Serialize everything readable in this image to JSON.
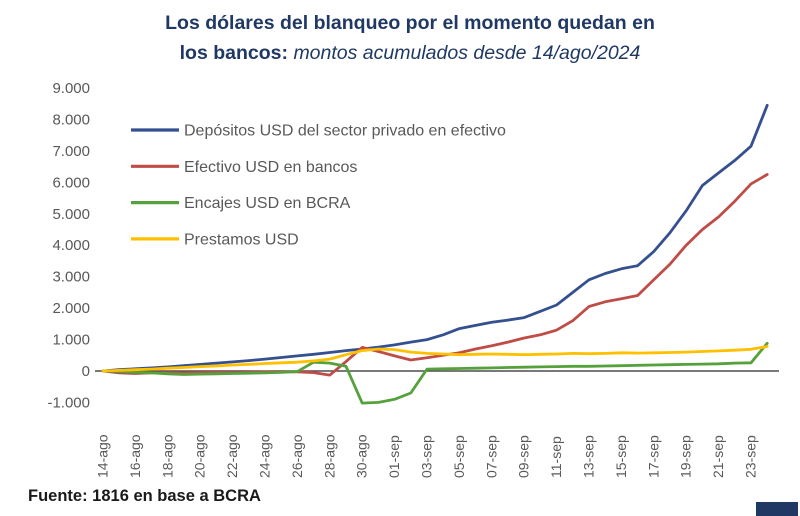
{
  "title": {
    "line1": "Los dólares del blanqueo por el momento quedan en",
    "line2_bold": "los bancos",
    "line2_sep": ": ",
    "line2_italic": "montos acumulados desde 14/ago/2024"
  },
  "footer": {
    "source": "Fuente: 1816 en base a BCRA"
  },
  "colors": {
    "title": "#1F3864",
    "axis_text": "#595959",
    "zero_line": "#4D4D4D",
    "corner_box": "#203864"
  },
  "chart_data": {
    "type": "line",
    "title": "Los dólares del blanqueo por el momento quedan en los bancos: montos acumulados desde 14/ago/2024",
    "xlabel": "",
    "ylabel": "",
    "ylim": [
      -1000,
      9000
    ],
    "grid": false,
    "legend_position": "inside-top-left",
    "y_tick_labels": [
      "9.000",
      "8.000",
      "7.000",
      "6.000",
      "5.000",
      "4.000",
      "3.000",
      "2.000",
      "1.000",
      "0",
      "-1.000"
    ],
    "y_tick_values": [
      9000,
      8000,
      7000,
      6000,
      5000,
      4000,
      3000,
      2000,
      1000,
      0,
      -1000
    ],
    "x_tick_step": 2,
    "x_tick_labels": [
      "14-ago",
      "16-ago",
      "18-ago",
      "20-ago",
      "22-ago",
      "24-ago",
      "26-ago",
      "28-ago",
      "30-ago",
      "01-sep",
      "03-sep",
      "05-sep",
      "07-sep",
      "09-sep",
      "11-sep",
      "13-sep",
      "15-sep",
      "17-sep",
      "19-sep",
      "21-sep",
      "23-sep"
    ],
    "categories": [
      "14-ago",
      "15-ago",
      "16-ago",
      "17-ago",
      "18-ago",
      "19-ago",
      "20-ago",
      "21-ago",
      "22-ago",
      "23-ago",
      "24-ago",
      "25-ago",
      "26-ago",
      "27-ago",
      "28-ago",
      "29-ago",
      "30-ago",
      "31-ago",
      "01-sep",
      "02-sep",
      "03-sep",
      "04-sep",
      "05-sep",
      "06-sep",
      "07-sep",
      "08-sep",
      "09-sep",
      "10-sep",
      "11-sep",
      "12-sep",
      "13-sep",
      "14-sep",
      "15-sep",
      "16-sep",
      "17-sep",
      "18-sep",
      "19-sep",
      "20-sep",
      "21-sep",
      "22-sep",
      "23-sep",
      "24-sep"
    ],
    "series": [
      {
        "id": "depositos-usd-sector-privado",
        "name": "Depósitos USD del sector privado en efectivo",
        "color": "#35508F",
        "values": [
          0,
          40,
          70,
          100,
          130,
          170,
          210,
          250,
          290,
          330,
          380,
          430,
          480,
          530,
          590,
          650,
          700,
          760,
          830,
          920,
          1000,
          1150,
          1350,
          1450,
          1550,
          1620,
          1700,
          1900,
          2100,
          2500,
          2900,
          3100,
          3250,
          3350,
          3800,
          4400,
          5100,
          5900,
          6300,
          6700,
          7150,
          8450
        ]
      },
      {
        "id": "efectivo-usd-bancos",
        "name": "Efectivo USD en bancos",
        "color": "#BF4C47",
        "values": [
          0,
          -60,
          -80,
          -60,
          -50,
          -60,
          -50,
          -40,
          -50,
          -40,
          -30,
          -20,
          -30,
          -50,
          -130,
          300,
          750,
          620,
          480,
          350,
          420,
          500,
          580,
          700,
          800,
          920,
          1050,
          1150,
          1300,
          1600,
          2050,
          2200,
          2300,
          2400,
          2900,
          3400,
          4000,
          4500,
          4900,
          5400,
          5950,
          6250
        ]
      },
      {
        "id": "encajes-usd-bcra",
        "name": "Encajes USD en BCRA",
        "color": "#55A13C",
        "values": [
          0,
          -20,
          -40,
          -60,
          -90,
          -110,
          -100,
          -90,
          -80,
          -70,
          -60,
          -40,
          -20,
          280,
          250,
          150,
          -1020,
          -1000,
          -900,
          -700,
          60,
          70,
          80,
          90,
          100,
          110,
          120,
          130,
          140,
          150,
          150,
          160,
          170,
          180,
          190,
          200,
          210,
          220,
          230,
          250,
          260,
          880
        ]
      },
      {
        "id": "prestamos-usd",
        "name": "Prestamos USD",
        "color": "#FFC000",
        "values": [
          0,
          20,
          40,
          60,
          90,
          110,
          140,
          160,
          190,
          210,
          240,
          260,
          280,
          320,
          380,
          520,
          650,
          700,
          680,
          600,
          560,
          540,
          520,
          530,
          540,
          530,
          520,
          530,
          540,
          560,
          550,
          560,
          580,
          570,
          580,
          590,
          600,
          620,
          640,
          660,
          690,
          780
        ]
      }
    ]
  }
}
